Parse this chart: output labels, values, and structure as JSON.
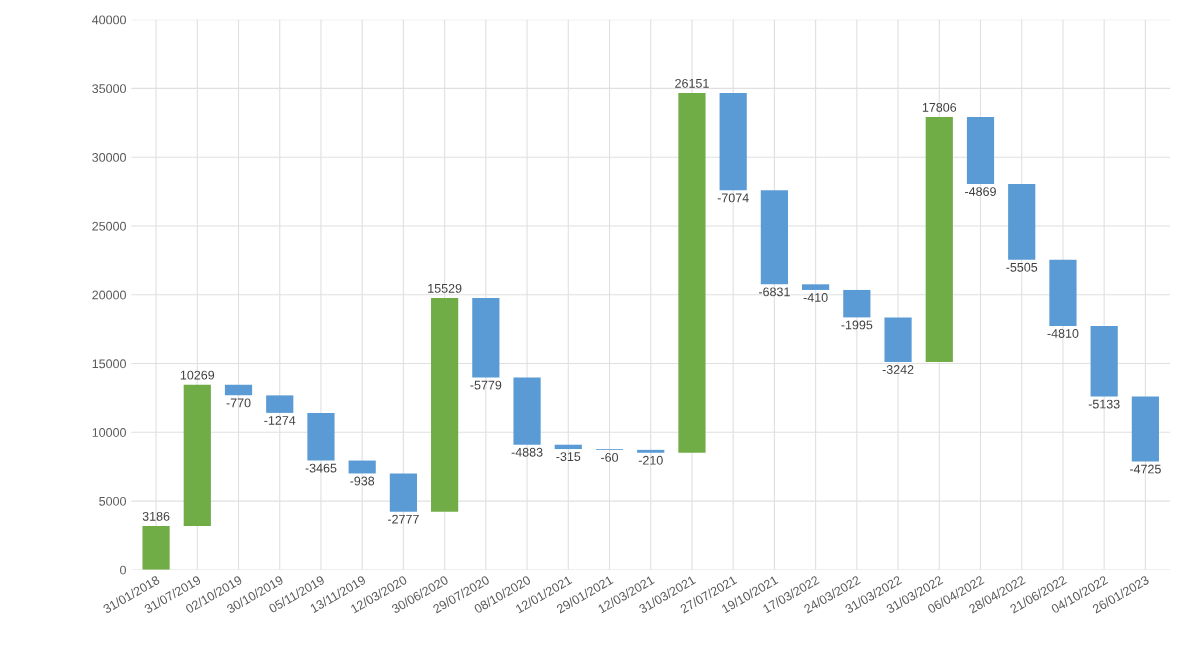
{
  "chart_data": {
    "type": "bar",
    "categories": [
      "31/01/2018",
      "31/07/2019",
      "02/10/2019",
      "30/10/2019",
      "05/11/2019",
      "13/11/2019",
      "12/03/2020",
      "30/06/2020",
      "29/07/2020",
      "08/10/2020",
      "12/01/2021",
      "29/01/2021",
      "12/03/2021",
      "31/03/2021",
      "27/07/2021",
      "19/10/2021",
      "17/03/2022",
      "24/03/2022",
      "31/03/2022",
      "31/03/2022",
      "06/04/2022",
      "28/04/2022",
      "21/06/2022",
      "04/10/2022",
      "26/01/2023"
    ],
    "values": [
      3186,
      10269,
      -770,
      -1274,
      -3465,
      -938,
      -2777,
      15529,
      -5779,
      -4883,
      -315,
      -60,
      -210,
      26151,
      -7074,
      -6831,
      -410,
      -1995,
      -3242,
      17806,
      -4869,
      -5505,
      -4810,
      -5133,
      -4725
    ],
    "base": [
      0,
      3186,
      13455,
      12685,
      11411,
      7946,
      7008,
      4231,
      19760,
      13981,
      9098,
      8783,
      8723,
      8513,
      34664,
      27590,
      20759,
      20349,
      18354,
      15112,
      32918,
      28049,
      22544,
      17734,
      12601
    ],
    "colors": [
      "#70ad47",
      "#70ad47",
      "#5b9bd5",
      "#5b9bd5",
      "#5b9bd5",
      "#5b9bd5",
      "#5b9bd5",
      "#70ad47",
      "#5b9bd5",
      "#5b9bd5",
      "#5b9bd5",
      "#5b9bd5",
      "#5b9bd5",
      "#70ad47",
      "#5b9bd5",
      "#5b9bd5",
      "#5b9bd5",
      "#5b9bd5",
      "#5b9bd5",
      "#70ad47",
      "#5b9bd5",
      "#5b9bd5",
      "#5b9bd5",
      "#5b9bd5",
      "#5b9bd5"
    ],
    "ylim": [
      0,
      40000
    ],
    "yticks": [
      0,
      5000,
      10000,
      15000,
      20000,
      25000,
      30000,
      35000,
      40000
    ],
    "grid": true,
    "data_labels": true
  }
}
